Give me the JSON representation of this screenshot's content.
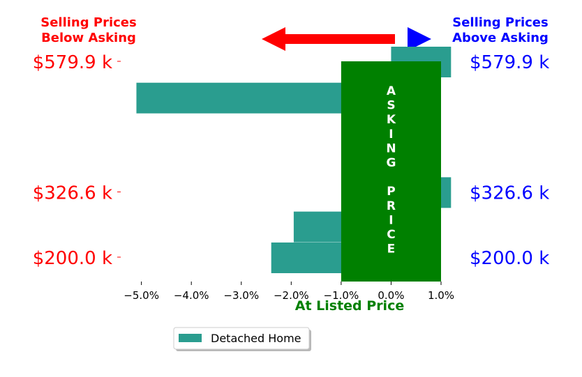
{
  "header": {
    "left_line1": "Selling Prices",
    "left_line2": "Below Asking",
    "right_line1": "Selling Prices",
    "right_line2": "Above Asking",
    "left_color": "#ff0000",
    "right_color": "#0000ff",
    "arrow_left_icon": "arrow-left-icon",
    "arrow_right_icon": "triangle-right-icon"
  },
  "asking_band": {
    "letters": [
      "A",
      "S",
      "K",
      "I",
      "N",
      "G",
      "",
      "P",
      "R",
      "I",
      "C",
      "E"
    ],
    "color": "#008000",
    "from": -1.0,
    "to": 1.0
  },
  "at_listed_label": "At Listed Price",
  "at_listed_color": "#008000",
  "chart_data": {
    "type": "bar",
    "orientation": "horizontal",
    "series": [
      {
        "name": "Detached Home",
        "color": "#2a9d8f",
        "bars": [
          {
            "price_k": 579.9,
            "value": 1.2
          },
          {
            "price_k": 510.0,
            "value": -5.1
          },
          {
            "price_k": 326.6,
            "value": 1.2
          },
          {
            "price_k": 260.0,
            "value": -1.95
          },
          {
            "price_k": 200.0,
            "value": -2.4
          }
        ]
      }
    ],
    "y_ticks": [
      {
        "price_k": 579.9,
        "label": "$579.9 k"
      },
      {
        "price_k": 326.6,
        "label": "$326.6 k"
      },
      {
        "price_k": 200.0,
        "label": "$200.0 k"
      }
    ],
    "x_ticks": [
      {
        "value": -5,
        "label": "−5.0%"
      },
      {
        "value": -4,
        "label": "−4.0%"
      },
      {
        "value": -3,
        "label": "−3.0%"
      },
      {
        "value": -2,
        "label": "−2.0%"
      },
      {
        "value": -1,
        "label": "−1.0%"
      },
      {
        "value": 0,
        "label": "0.0%"
      },
      {
        "value": 1,
        "label": "1.0%"
      }
    ],
    "xlim": [
      -5.4,
      1.0
    ],
    "legend": {
      "placement": "bottom-center",
      "entries": [
        "Detached Home"
      ]
    }
  }
}
